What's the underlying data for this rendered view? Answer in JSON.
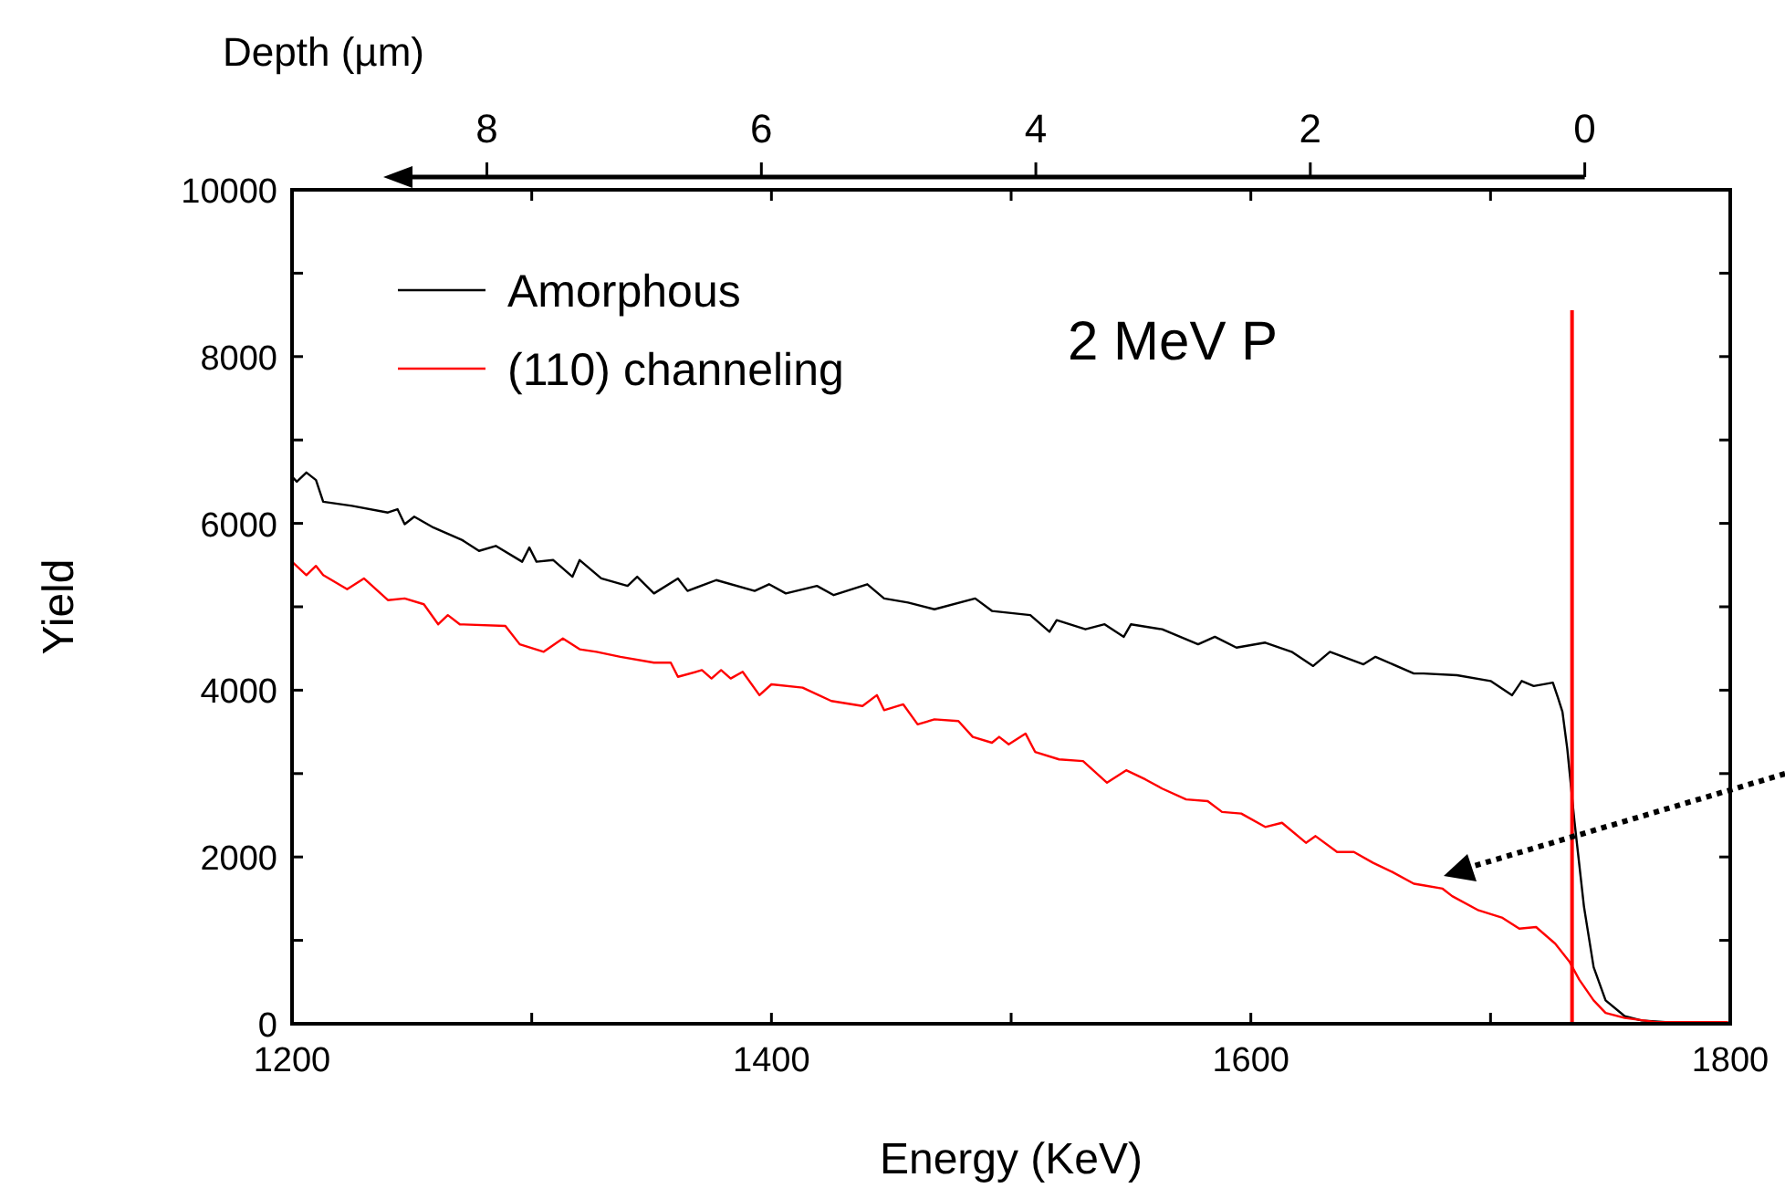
{
  "chart_data": {
    "type": "line",
    "xlabel": "Energy  (KeV)",
    "ylabel": "Yield",
    "x2label": "Depth (µm)",
    "annotations": [
      "2 MeV P"
    ],
    "xlim": [
      1200,
      1800
    ],
    "xticks": [
      1200,
      {
        "value": 1300,
        "label": null
      },
      1400,
      {
        "value": 1500,
        "label": null
      },
      1600,
      {
        "value": 1700,
        "label": null
      },
      1800
    ],
    "ylim": [
      0,
      10000
    ],
    "yticks": [
      0,
      {
        "value": 1000,
        "label": null
      },
      2000,
      {
        "value": 3000,
        "label": null
      },
      4000,
      {
        "value": 5000,
        "label": null
      },
      6000,
      {
        "value": 7000,
        "label": null
      },
      8000,
      {
        "value": 9000,
        "label": null
      },
      10000
    ],
    "x2lim": [
      9.42,
      -1.06
    ],
    "x2ticks": [
      8,
      6,
      4,
      2,
      0
    ],
    "legend": "top left",
    "grid": false,
    "marker": "none",
    "line_style": "solid",
    "ref_lines": [
      {
        "axis": "x",
        "value": 1734,
        "color": "#ff0000"
      }
    ],
    "series": [
      {
        "name": "Amorphous",
        "color": "#000000",
        "x": [
          1200,
          1202,
          1206,
          1210,
          1213,
          1225,
          1240,
          1244,
          1247,
          1251,
          1259,
          1271,
          1278,
          1285,
          1296,
          1299,
          1302,
          1309,
          1317,
          1320,
          1329,
          1340,
          1344,
          1351,
          1361,
          1365,
          1377,
          1393,
          1399,
          1406,
          1419,
          1426,
          1440,
          1447,
          1457,
          1468,
          1485,
          1492,
          1508,
          1516,
          1519,
          1531,
          1539,
          1547,
          1550,
          1563,
          1578,
          1585,
          1594,
          1606,
          1617,
          1626,
          1633,
          1647,
          1652,
          1668,
          1672,
          1686,
          1700,
          1709,
          1713,
          1718,
          1726,
          1728,
          1730,
          1732,
          1735,
          1739,
          1743,
          1748,
          1756,
          1763,
          1773,
          1799
        ],
        "values": [
          6560,
          6500,
          6610,
          6520,
          6260,
          6210,
          6130,
          6170,
          5990,
          6080,
          5950,
          5800,
          5670,
          5730,
          5540,
          5710,
          5540,
          5560,
          5360,
          5560,
          5340,
          5250,
          5360,
          5160,
          5340,
          5190,
          5320,
          5190,
          5270,
          5160,
          5250,
          5140,
          5270,
          5100,
          5050,
          4970,
          5100,
          4950,
          4900,
          4700,
          4840,
          4730,
          4790,
          4640,
          4790,
          4730,
          4550,
          4640,
          4510,
          4570,
          4460,
          4290,
          4460,
          4310,
          4400,
          4200,
          4200,
          4180,
          4110,
          3940,
          4110,
          4050,
          4090,
          3920,
          3740,
          3300,
          2430,
          1400,
          680,
          280,
          90,
          40,
          20,
          20
        ]
      },
      {
        "name": "(110) channeling",
        "color": "#ff0000",
        "x": [
          1200,
          1206,
          1210,
          1213,
          1223,
          1230,
          1240,
          1247,
          1255,
          1261,
          1265,
          1270,
          1289,
          1295,
          1305,
          1313,
          1320,
          1327,
          1337,
          1351,
          1358,
          1361,
          1371,
          1375,
          1379,
          1383,
          1388,
          1395,
          1400,
          1413,
          1425,
          1438,
          1444,
          1447,
          1455,
          1461,
          1468,
          1478,
          1484,
          1492,
          1495,
          1499,
          1506,
          1510,
          1520,
          1530,
          1540,
          1548,
          1556,
          1563,
          1573,
          1582,
          1588,
          1596,
          1606,
          1613,
          1623,
          1627,
          1636,
          1643,
          1651,
          1659,
          1668,
          1672,
          1680,
          1684,
          1695,
          1705,
          1712,
          1719,
          1727,
          1733,
          1737,
          1743,
          1748,
          1756,
          1769,
          1799
        ],
        "values": [
          5540,
          5380,
          5490,
          5380,
          5210,
          5340,
          5080,
          5100,
          5030,
          4790,
          4900,
          4790,
          4770,
          4550,
          4460,
          4620,
          4490,
          4460,
          4400,
          4330,
          4330,
          4160,
          4240,
          4140,
          4240,
          4140,
          4220,
          3940,
          4070,
          4030,
          3870,
          3810,
          3940,
          3760,
          3830,
          3590,
          3650,
          3630,
          3440,
          3370,
          3440,
          3350,
          3480,
          3260,
          3170,
          3150,
          2890,
          3040,
          2930,
          2820,
          2690,
          2670,
          2540,
          2520,
          2360,
          2410,
          2170,
          2250,
          2060,
          2060,
          1930,
          1820,
          1680,
          1660,
          1620,
          1530,
          1360,
          1270,
          1140,
          1160,
          960,
          740,
          530,
          280,
          130,
          70,
          20,
          20
        ]
      }
    ]
  }
}
